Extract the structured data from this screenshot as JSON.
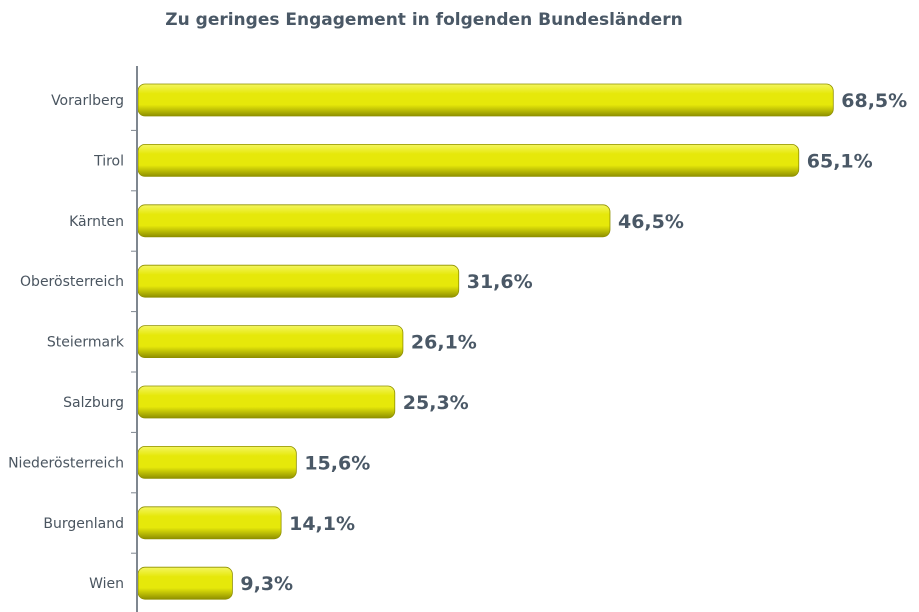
{
  "chart_data": {
    "type": "bar",
    "orientation": "horizontal",
    "title": "Zu geringes Engagement in folgenden Bundesländern",
    "categories": [
      "Vorarlberg",
      "Tirol",
      "Kärnten",
      "Oberösterreich",
      "Steiermark",
      "Salzburg",
      "Niederösterreich",
      "Burgenland",
      "Wien"
    ],
    "values": [
      68.5,
      65.1,
      46.5,
      31.6,
      26.1,
      25.3,
      15.6,
      14.1,
      9.3
    ],
    "value_labels": [
      "68,5%",
      "65,1%",
      "46,5%",
      "31,6%",
      "26,1%",
      "25,3%",
      "15,6%",
      "14,1%",
      "9,3%"
    ],
    "xlim": [
      0,
      100
    ],
    "grid": false,
    "legend": "none",
    "colors": {
      "bar_light": "#f4f660",
      "bar_mid": "#e6e80a",
      "bar_dark": "#8f9000",
      "axis": "#7f8790"
    }
  }
}
